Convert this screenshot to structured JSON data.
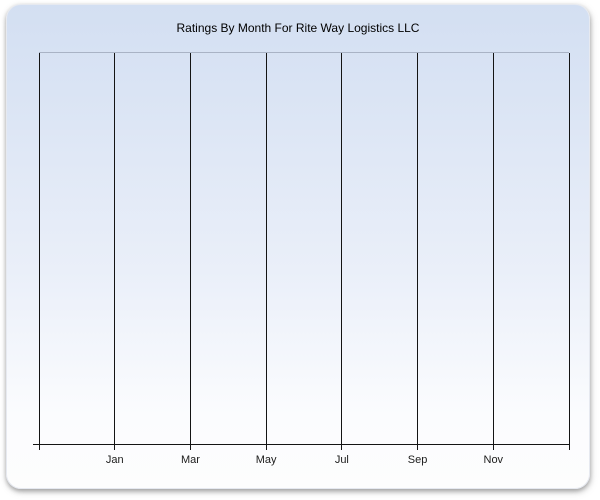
{
  "chart": {
    "title": "Ratings By Month For Rite Way Logistics LLC"
  },
  "chart_data": {
    "type": "line",
    "title": "Ratings By Month For Rite Way Logistics LLC",
    "categories": [
      "Jan",
      "Mar",
      "May",
      "Jul",
      "Sep",
      "Nov"
    ],
    "series": [],
    "plot_empty": true,
    "xlabel": "",
    "ylabel": "",
    "x_gridline_count": 8,
    "grid": "vertical",
    "legend": "none"
  },
  "colors": {
    "panel_top": "#d3dff2",
    "panel_bottom": "#fdfdfd",
    "plot_top_border": "#a9b3c5",
    "gridline": "#141414",
    "axis": "#141414",
    "tick_label": "#1c1c1c",
    "title_text": "#000000"
  }
}
